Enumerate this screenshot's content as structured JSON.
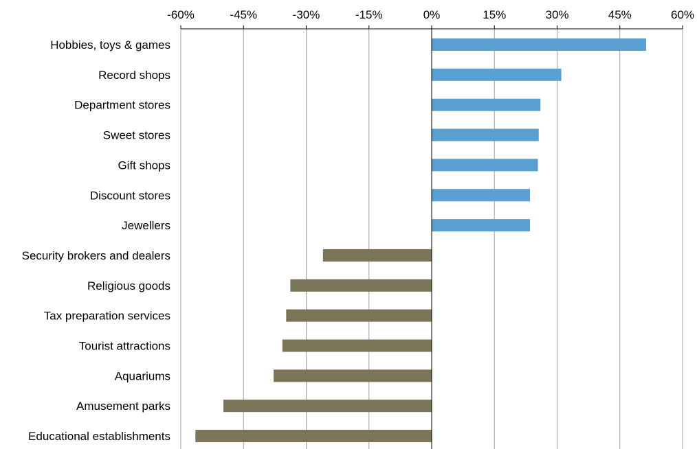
{
  "chart_data": {
    "type": "bar",
    "orientation": "horizontal",
    "title": "",
    "xlabel": "",
    "ylabel": "",
    "xlim": [
      -60,
      60
    ],
    "x_ticks": [
      -60,
      -45,
      -30,
      -15,
      0,
      15,
      30,
      45,
      60
    ],
    "x_tick_labels": [
      "-60%",
      "-45%",
      "-30%",
      "-15%",
      "0%",
      "15%",
      "30%",
      "45%",
      "60%"
    ],
    "x_axis_position": "top",
    "grid": "vertical",
    "legend": "none",
    "categories": [
      "Hobbies, toys & games",
      "Record shops",
      "Department stores",
      "Sweet stores",
      "Gift shops",
      "Discount stores",
      "Jewellers",
      "Security brokers and dealers",
      "Religious goods",
      "Tax preparation services",
      "Tourist attractions",
      "Aquariums",
      "Amusement parks",
      "Educational establishments"
    ],
    "values": [
      51.3,
      31.0,
      26.0,
      25.6,
      25.4,
      23.5,
      23.5,
      -26.0,
      -33.8,
      -34.8,
      -35.7,
      -37.8,
      -49.8,
      -56.5
    ],
    "colors": {
      "positive": "#599fd2",
      "negative": "#7a7556",
      "gridline": "#a0a0a0",
      "axis": "#000000"
    }
  }
}
